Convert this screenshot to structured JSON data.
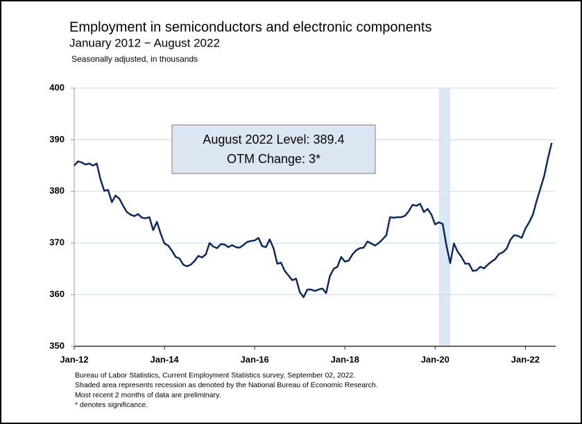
{
  "chart_data": {
    "type": "line",
    "title": "Employment in semiconductors and electronic components",
    "subtitle": "January 2012 − August 2022",
    "note": "Seasonally adjusted, in thousands",
    "annotation": [
      "August 2022 Level: 389.4",
      "OTM Change: 3*"
    ],
    "footnotes": [
      "Bureau of Labor Statistics, Current Employment Statistics survey, September 02, 2022.",
      "Shaded area represents recession as denoted by the National Bureau of Economic Research.",
      "Most recent 2 months of data are preliminary.",
      "* denotes significance."
    ],
    "categories": [
      "Jan-12",
      null,
      null,
      null,
      null,
      null,
      null,
      null,
      null,
      null,
      null,
      null,
      null,
      null,
      null,
      null,
      null,
      null,
      null,
      null,
      null,
      null,
      null,
      null,
      "Jan-14",
      null,
      null,
      null,
      null,
      null,
      null,
      null,
      null,
      null,
      null,
      null,
      null,
      null,
      null,
      null,
      null,
      null,
      null,
      null,
      null,
      null,
      null,
      null,
      "Jan-16",
      null,
      null,
      null,
      null,
      null,
      null,
      null,
      null,
      null,
      null,
      null,
      null,
      null,
      null,
      null,
      null,
      null,
      null,
      null,
      null,
      null,
      null,
      null,
      "Jan-18",
      null,
      null,
      null,
      null,
      null,
      null,
      null,
      null,
      null,
      null,
      null,
      null,
      null,
      null,
      null,
      null,
      null,
      null,
      null,
      null,
      null,
      null,
      null,
      "Jan-20",
      null,
      null,
      null,
      null,
      null,
      null,
      null,
      null,
      null,
      null,
      null,
      null,
      null,
      null,
      null,
      null,
      null,
      null,
      null,
      null,
      null,
      null,
      null,
      "Jan-22",
      null,
      null,
      null,
      null,
      null,
      null,
      null
    ],
    "series": [
      {
        "name": "Employment",
        "color": "#0d2a5e",
        "values": [
          385.0,
          385.8,
          385.6,
          385.2,
          385.4,
          385.0,
          385.4,
          382.3,
          380.1,
          380.3,
          377.9,
          379.2,
          378.6,
          377.2,
          376.0,
          375.5,
          375.2,
          375.6,
          374.9,
          374.8,
          375.0,
          372.5,
          374.1,
          371.8,
          369.9,
          369.5,
          368.5,
          367.3,
          367.0,
          365.8,
          365.5,
          365.8,
          366.5,
          367.5,
          367.2,
          367.8,
          370.0,
          369.3,
          369.0,
          369.8,
          369.7,
          369.2,
          369.6,
          369.2,
          369.1,
          369.6,
          370.2,
          370.4,
          370.5,
          371.0,
          369.4,
          369.2,
          370.7,
          369.0,
          366.0,
          366.2,
          364.6,
          363.7,
          362.8,
          363.1,
          360.5,
          359.5,
          361.0,
          361.0,
          360.7,
          361.0,
          361.2,
          360.3,
          363.6,
          365.0,
          365.4,
          367.3,
          366.4,
          366.6,
          367.8,
          368.6,
          369.0,
          369.1,
          370.3,
          369.9,
          369.5,
          370.0,
          370.7,
          371.5,
          375.0,
          374.9,
          375.0,
          375.0,
          375.3,
          376.2,
          377.4,
          377.2,
          377.6,
          376.0,
          376.6,
          375.5,
          373.6,
          374.0,
          373.7,
          369.5,
          366.1,
          369.9,
          368.3,
          367.3,
          366.0,
          366.0,
          364.6,
          364.7,
          365.4,
          365.1,
          365.8,
          366.4,
          366.9,
          367.9,
          368.2,
          368.9,
          370.6,
          371.5,
          371.4,
          371.0,
          372.8,
          374.0,
          375.5,
          378.2,
          380.6,
          383.0,
          386.4,
          389.4
        ]
      }
    ],
    "recession": [
      97,
      100
    ],
    "recession_color": "#dce9f5",
    "ylim": [
      350,
      400
    ],
    "yticks": [
      350,
      360,
      370,
      380,
      390,
      400
    ],
    "grid": true
  }
}
